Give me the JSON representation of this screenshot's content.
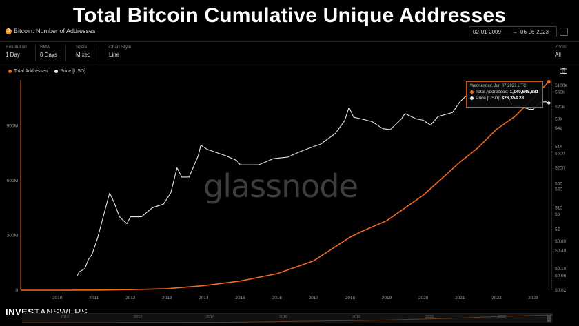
{
  "banner": "Total Bitcoin Cumulative Unique Addresses",
  "header": {
    "coin_glyph": "₿",
    "title": "Bitcoin: Number of Addresses",
    "date_from": "02-01-2009",
    "date_sep": "→",
    "date_to": "06-06-2023",
    "calendar_icon": "calendar-icon"
  },
  "controls": [
    {
      "label": "Resolution",
      "value": "1 Day"
    },
    {
      "label": "SMA",
      "value": "0 Days"
    },
    {
      "label": "Scale",
      "value": "Mixed"
    },
    {
      "label": "Chart Style",
      "value": "Line"
    }
  ],
  "zoom": {
    "label": "Zoom",
    "value": "All"
  },
  "legend": [
    {
      "label": "Total Addresses",
      "color": "#f26b21"
    },
    {
      "label": "Price [USD]",
      "color": "#e6e6e6"
    }
  ],
  "tooltip": {
    "date": "Wednesday, Jun 07 2023 UTC",
    "row1_label": "Total Addresses:",
    "row1_value": "1,140,645,881",
    "row2_label": "Price [USD]:",
    "row2_value": "$26,354.28"
  },
  "watermark": "glassnode",
  "footer": {
    "brand_bold": "INVEST",
    "brand_light": "ANSWERS"
  },
  "navigator_labels": [
    "2010",
    "2012",
    "2014",
    "2016",
    "2018",
    "2020",
    "2022"
  ],
  "chart_data": {
    "type": "line",
    "x_tick_labels": [
      "2010",
      "2011",
      "2012",
      "2013",
      "2014",
      "2015",
      "2016",
      "2017",
      "2018",
      "2019",
      "2020",
      "2021",
      "2022",
      "2023"
    ],
    "y_left_ticks": [
      "0",
      "300M",
      "600M",
      "900M"
    ],
    "y_left_values": [
      0,
      300000000,
      600000000,
      900000000
    ],
    "y_right_ticks": [
      "$100k",
      "$60k",
      "$20k",
      "$8k",
      "$4k",
      "$1k",
      "$600",
      "$200",
      "$60",
      "$40",
      "$10",
      "$6",
      "$2",
      "$0.80",
      "$0.40",
      "$0.10",
      "$0.06",
      "$0.02"
    ],
    "y_right_values": [
      100000,
      60000,
      20000,
      8000,
      4000,
      1000,
      600,
      200,
      60,
      40,
      10,
      6,
      2,
      0.8,
      0.4,
      0.1,
      0.06,
      0.02
    ],
    "y_right_scale": "log",
    "series": [
      {
        "name": "Total Addresses",
        "color": "#f26b21",
        "axis": "left",
        "points": [
          [
            2009.0,
            0
          ],
          [
            2010.0,
            0
          ],
          [
            2011.0,
            200000
          ],
          [
            2012.0,
            3000000
          ],
          [
            2013.0,
            8000000
          ],
          [
            2014.0,
            25000000
          ],
          [
            2015.0,
            50000000
          ],
          [
            2016.0,
            90000000
          ],
          [
            2017.0,
            160000000
          ],
          [
            2018.0,
            290000000
          ],
          [
            2018.3,
            320000000
          ],
          [
            2019.0,
            380000000
          ],
          [
            2020.0,
            520000000
          ],
          [
            2021.0,
            700000000
          ],
          [
            2021.5,
            780000000
          ],
          [
            2022.0,
            880000000
          ],
          [
            2022.5,
            950000000
          ],
          [
            2023.0,
            1050000000
          ],
          [
            2023.43,
            1140645881
          ]
        ]
      },
      {
        "name": "Price [USD]",
        "color": "#e6e6e6",
        "axis": "right",
        "points": [
          [
            2010.55,
            0.06
          ],
          [
            2010.6,
            0.08
          ],
          [
            2010.75,
            0.1
          ],
          [
            2010.85,
            0.2
          ],
          [
            2010.95,
            0.3
          ],
          [
            2011.1,
            1
          ],
          [
            2011.3,
            8
          ],
          [
            2011.43,
            30
          ],
          [
            2011.55,
            15
          ],
          [
            2011.7,
            5
          ],
          [
            2011.9,
            3
          ],
          [
            2012.0,
            5
          ],
          [
            2012.3,
            5
          ],
          [
            2012.6,
            10
          ],
          [
            2012.9,
            13
          ],
          [
            2013.1,
            30
          ],
          [
            2013.27,
            200
          ],
          [
            2013.4,
            100
          ],
          [
            2013.6,
            100
          ],
          [
            2013.85,
            500
          ],
          [
            2013.92,
            1100
          ],
          [
            2014.1,
            800
          ],
          [
            2014.4,
            600
          ],
          [
            2014.6,
            500
          ],
          [
            2014.9,
            350
          ],
          [
            2015.0,
            250
          ],
          [
            2015.5,
            250
          ],
          [
            2015.9,
            400
          ],
          [
            2016.3,
            450
          ],
          [
            2016.6,
            650
          ],
          [
            2016.9,
            900
          ],
          [
            2017.2,
            1200
          ],
          [
            2017.6,
            2700
          ],
          [
            2017.85,
            7000
          ],
          [
            2017.97,
            19000
          ],
          [
            2018.1,
            9000
          ],
          [
            2018.3,
            8000
          ],
          [
            2018.6,
            6500
          ],
          [
            2018.9,
            3800
          ],
          [
            2019.1,
            3600
          ],
          [
            2019.4,
            8000
          ],
          [
            2019.5,
            12000
          ],
          [
            2019.8,
            8000
          ],
          [
            2020.0,
            7200
          ],
          [
            2020.2,
            5000
          ],
          [
            2020.4,
            9500
          ],
          [
            2020.8,
            13000
          ],
          [
            2021.0,
            29000
          ],
          [
            2021.28,
            60000
          ],
          [
            2021.55,
            33000
          ],
          [
            2021.85,
            65000
          ],
          [
            2022.0,
            47000
          ],
          [
            2022.3,
            40000
          ],
          [
            2022.45,
            22000
          ],
          [
            2022.7,
            19500
          ],
          [
            2022.9,
            16500
          ],
          [
            2023.0,
            16600
          ],
          [
            2023.2,
            28000
          ],
          [
            2023.35,
            29000
          ],
          [
            2023.43,
            26354.28
          ]
        ]
      }
    ],
    "y_left_range": [
      0,
      1150000000
    ],
    "y_right_range": [
      0.02,
      150000
    ],
    "x_range": [
      2009.0,
      2023.5
    ],
    "grid": false,
    "legend_placement": "top-left"
  }
}
